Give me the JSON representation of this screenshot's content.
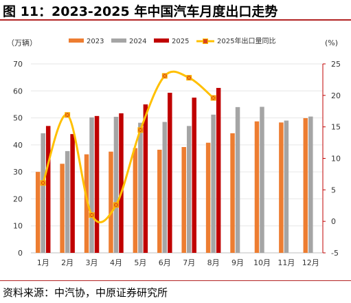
{
  "title": "图 11：2023-2025 年中国汽车月度出口走势",
  "source": "资料来源：中汽协，中原证券研究所",
  "chart_data": {
    "type": "bar",
    "left_unit": "（万辆）",
    "right_unit": "(%)",
    "categories": [
      "1月",
      "2月",
      "3月",
      "4月",
      "5月",
      "6月",
      "7月",
      "8月",
      "9月",
      "10月",
      "11月",
      "12月"
    ],
    "y_left": {
      "min": 0,
      "max": 70,
      "ticks": [
        0,
        10,
        20,
        30,
        40,
        50,
        60,
        70
      ]
    },
    "y_right": {
      "min": -5,
      "max": 25,
      "ticks": [
        -5,
        0,
        5,
        10,
        15,
        20,
        25
      ]
    },
    "series": [
      {
        "name": "2023",
        "color": "#ed7d31",
        "values": [
          30,
          33,
          36.5,
          37.5,
          38.8,
          38.2,
          39.2,
          40.8,
          44.3,
          48.7,
          48.3,
          49.9
        ]
      },
      {
        "name": "2024",
        "color": "#a5a5a5",
        "values": [
          44.3,
          37.7,
          50.2,
          50.4,
          48.2,
          48.5,
          47,
          51.2,
          54,
          54.1,
          49,
          50.5
        ]
      },
      {
        "name": "2025",
        "color": "#c00000",
        "values": [
          47,
          44,
          50.7,
          51.7,
          55,
          59.3,
          57.5,
          61.1,
          null,
          null,
          null,
          null
        ]
      }
    ],
    "line_series": {
      "name": "2025年出口量同比",
      "color": "#ffc000",
      "marker_color": "#d9441c",
      "axis": "right",
      "values": [
        6.1,
        16.9,
        1,
        2.6,
        14.5,
        23.1,
        22.8,
        19.6
      ]
    },
    "legend": [
      "2023",
      "2024",
      "2025",
      "2025年出口量同比"
    ],
    "legend_position": "top"
  }
}
